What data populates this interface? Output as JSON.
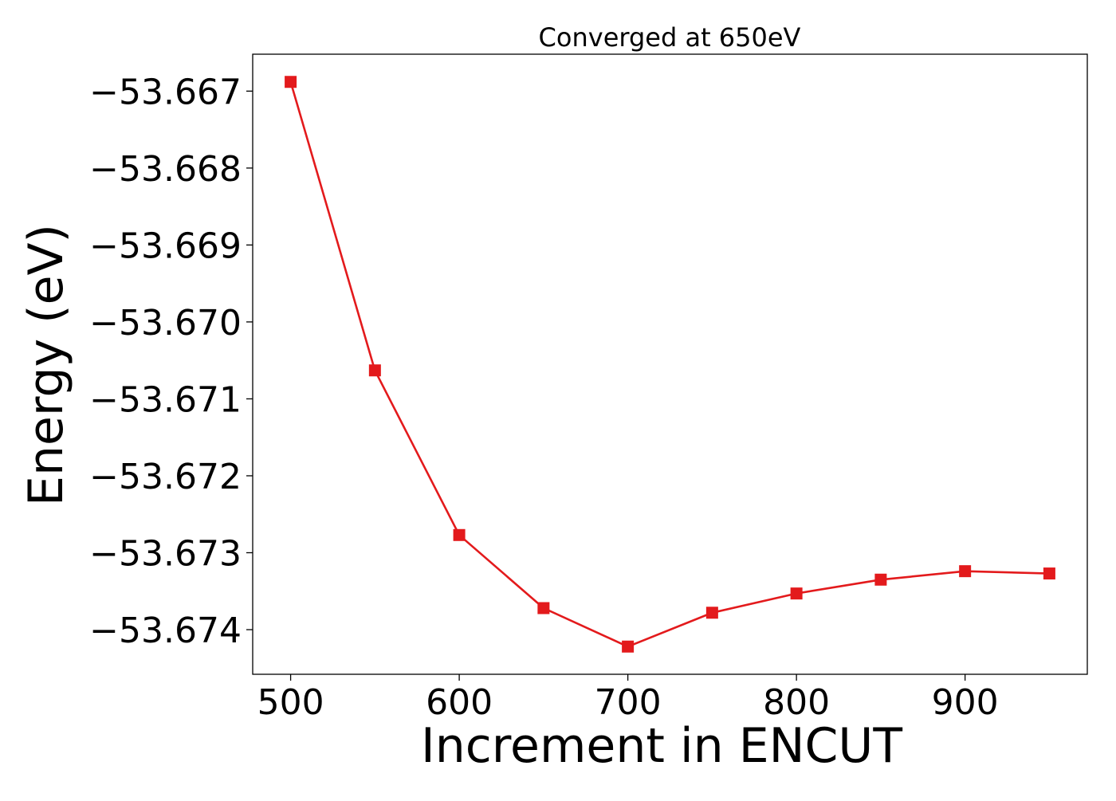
{
  "chart_data": {
    "type": "line",
    "title": "Converged at 650eV",
    "xlabel": "Increment in ENCUT",
    "ylabel": "Energy (eV)",
    "x": [
      500,
      550,
      600,
      650,
      700,
      750,
      800,
      850,
      900,
      950
    ],
    "series": [
      {
        "name": "",
        "values": [
          -53.66688,
          -53.67063,
          -53.67277,
          -53.67372,
          -53.67422,
          -53.67378,
          -53.67353,
          -53.67335,
          -53.67324,
          -53.67327
        ],
        "color": "#e31a1c",
        "marker": "square"
      }
    ],
    "xlim": [
      477.5,
      972.5
    ],
    "ylim": [
      -53.67458,
      -53.66652
    ],
    "xticks": [
      500,
      600,
      700,
      800,
      900
    ],
    "xtick_labels": [
      "500",
      "600",
      "700",
      "800",
      "900"
    ],
    "yticks": [
      -53.667,
      -53.668,
      -53.669,
      -53.67,
      -53.671,
      -53.672,
      -53.673,
      -53.674
    ],
    "ytick_labels": [
      "−53.667",
      "−53.668",
      "−53.669",
      "−53.670",
      "−53.671",
      "−53.672",
      "−53.673",
      "−53.674"
    ],
    "grid": false,
    "legend": "none"
  }
}
